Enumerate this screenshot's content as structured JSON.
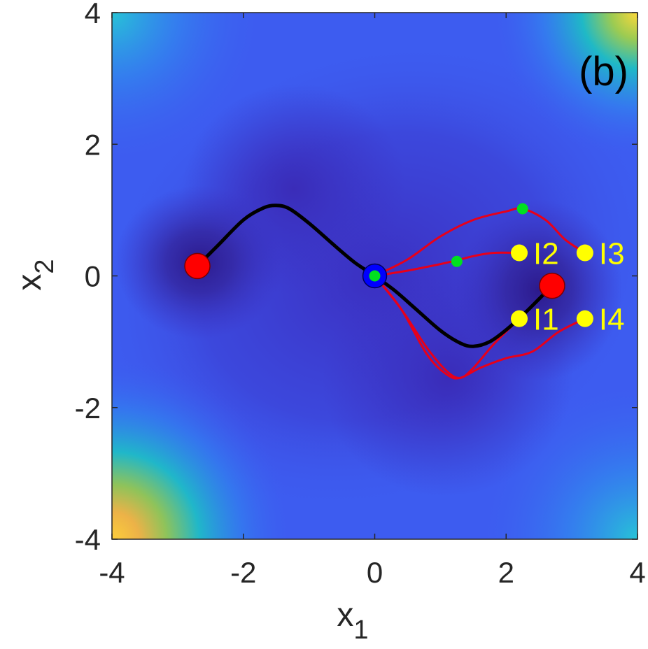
{
  "chart_data": {
    "type": "scatter",
    "panel_label": "(b)",
    "xlabel": "x",
    "xlabel_sub": "1",
    "ylabel": "x",
    "ylabel_sub": "2",
    "xlim": [
      -4,
      4
    ],
    "ylim": [
      -4,
      4
    ],
    "xticks": [
      -4,
      -2,
      0,
      2,
      4
    ],
    "yticks": [
      -4,
      -2,
      0,
      2,
      4
    ],
    "grid": false,
    "colormap": "parula",
    "minima": [
      {
        "x": -2.7,
        "y": 0.15
      },
      {
        "x": 2.7,
        "y": -0.15
      }
    ],
    "saddle": {
      "x": 0.0,
      "y": 0.0
    },
    "black_path": {
      "x": [
        -2.7,
        -2.4,
        -2.0,
        -1.7,
        -1.5,
        -1.3,
        -1.0,
        -0.6,
        -0.3,
        0.0,
        0.3,
        0.6,
        1.0,
        1.3,
        1.5,
        1.75,
        2.0,
        2.3,
        2.7
      ],
      "y": [
        0.15,
        0.45,
        0.85,
        1.03,
        1.07,
        1.02,
        0.8,
        0.45,
        0.2,
        0.0,
        -0.22,
        -0.48,
        -0.83,
        -1.02,
        -1.07,
        -1.0,
        -0.82,
        -0.55,
        -0.15
      ]
    },
    "red_paths": [
      {
        "x": [
          0.0,
          0.4,
          0.8,
          1.1,
          1.3,
          1.5,
          1.8,
          2.1,
          2.2
        ],
        "y": [
          0.0,
          -0.5,
          -1.1,
          -1.45,
          -1.55,
          -1.4,
          -1.05,
          -0.75,
          -0.65
        ]
      },
      {
        "x": [
          0.0,
          0.5,
          1.0,
          1.3,
          1.5,
          1.8,
          2.2
        ],
        "y": [
          0.0,
          0.08,
          0.18,
          0.25,
          0.3,
          0.35,
          0.35
        ]
      },
      {
        "x": [
          0.0,
          0.5,
          1.0,
          1.5,
          2.0,
          2.25,
          2.6,
          2.9,
          3.2
        ],
        "y": [
          0.0,
          0.25,
          0.6,
          0.85,
          0.98,
          1.02,
          0.85,
          0.55,
          0.35
        ]
      },
      {
        "x": [
          0.0,
          0.4,
          0.8,
          1.1,
          1.3,
          1.6,
          2.0,
          2.4,
          2.8,
          3.2
        ],
        "y": [
          0.0,
          -0.5,
          -1.2,
          -1.5,
          -1.55,
          -1.4,
          -1.25,
          -1.15,
          -0.85,
          -0.65
        ]
      }
    ],
    "green_points": [
      {
        "x": 0.0,
        "y": 0.0
      },
      {
        "x": 1.25,
        "y": 0.22
      },
      {
        "x": 2.25,
        "y": 1.02
      }
    ],
    "labeled_points": [
      {
        "label": "I1",
        "x": 2.2,
        "y": -0.65
      },
      {
        "label": "I2",
        "x": 2.2,
        "y": 0.35
      },
      {
        "label": "I3",
        "x": 3.2,
        "y": 0.35
      },
      {
        "label": "I4",
        "x": 3.2,
        "y": -0.65
      }
    ],
    "colors": {
      "background_low": "#3b2fc0",
      "background_mid": "#3d5cf0",
      "background_high_cyan": "#27b8d8",
      "background_peak": "#fcd83a",
      "black_path": "#000000",
      "red_path": "#e8001a",
      "minimum_marker": "#ff0000",
      "saddle_marker": "#0000ff",
      "green_marker": "#00e020",
      "label_marker": "#ffff00"
    }
  }
}
